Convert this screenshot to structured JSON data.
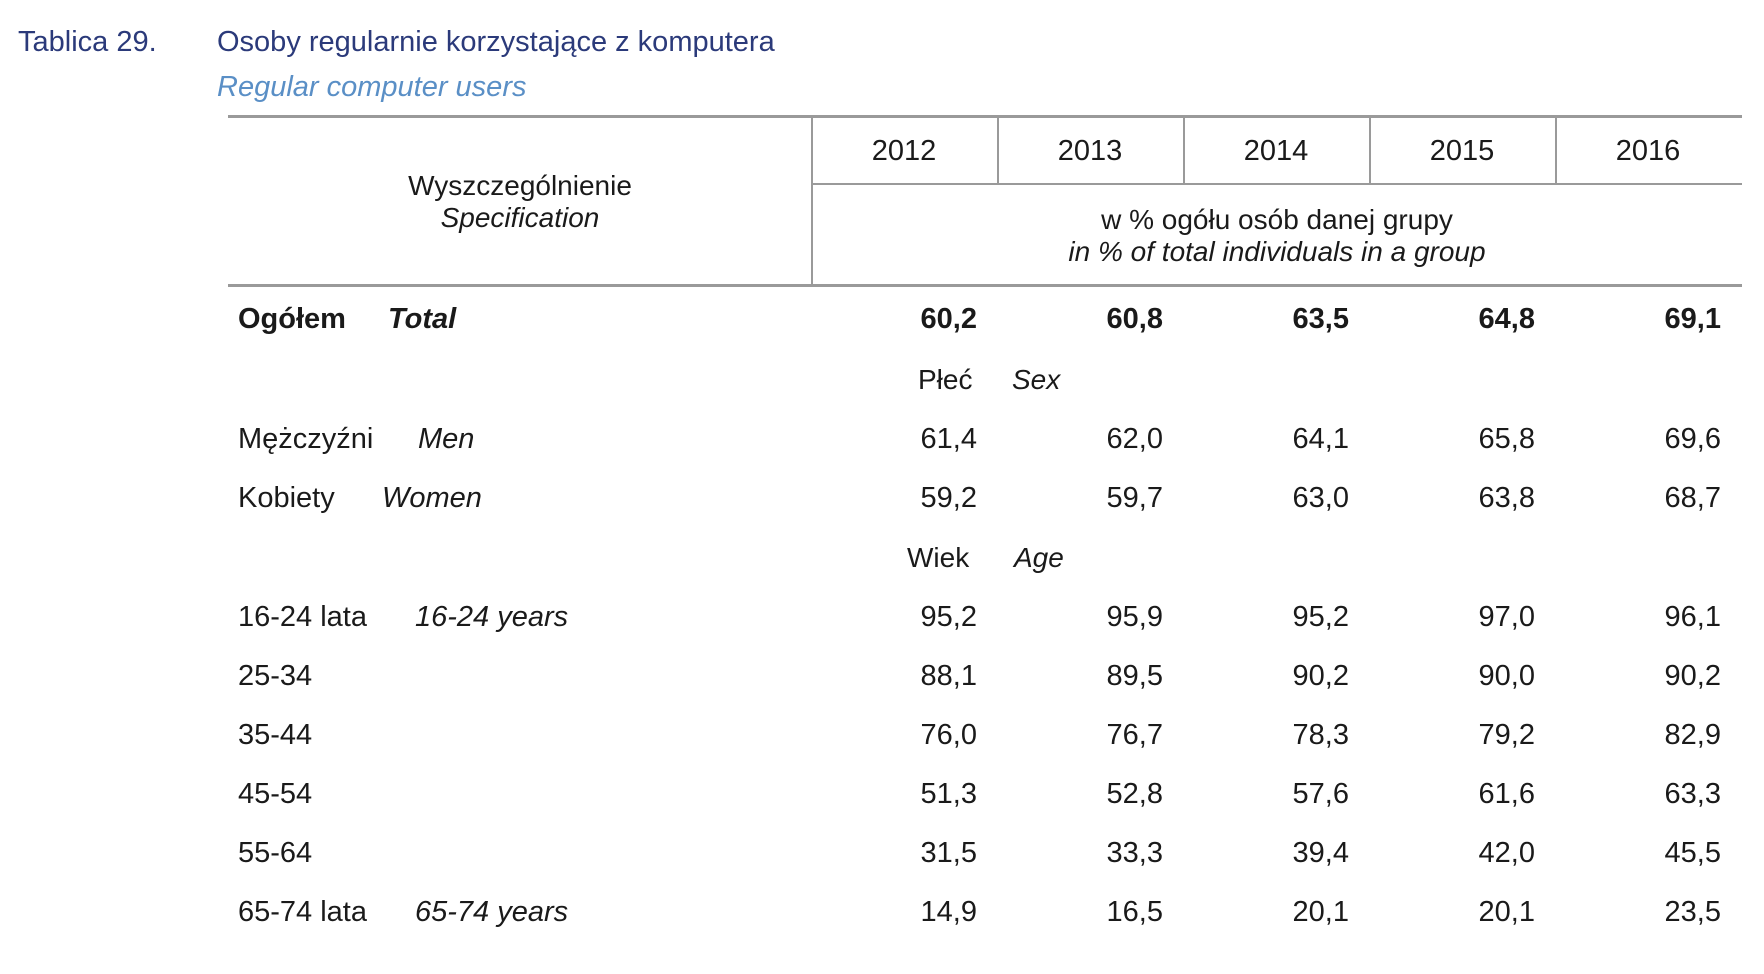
{
  "title": {
    "number": "Tablica 29.",
    "pl": "Osoby regularnie korzystające z komputera",
    "en": "Regular computer users"
  },
  "header": {
    "spec_pl": "Wyszczególnienie",
    "spec_en": "Specification",
    "years": [
      "2012",
      "2013",
      "2014",
      "2015",
      "2016"
    ],
    "unit_pl": "w % ogółu osób danej grupy",
    "unit_en": "in % of total individuals in a group"
  },
  "total": {
    "label_pl": "Ogółem",
    "label_en": "Total",
    "values": [
      "60,2",
      "60,8",
      "63,5",
      "64,8",
      "69,1"
    ]
  },
  "sections": {
    "sex": {
      "pl": "Płeć",
      "en": "Sex"
    },
    "age": {
      "pl": "Wiek",
      "en": "Age"
    }
  },
  "sex_rows": [
    {
      "label_pl": "Mężczyźni",
      "label_en": "Men",
      "values": [
        "61,4",
        "62,0",
        "64,1",
        "65,8",
        "69,6"
      ]
    },
    {
      "label_pl": "Kobiety",
      "label_en": "Women",
      "values": [
        "59,2",
        "59,7",
        "63,0",
        "63,8",
        "68,7"
      ]
    }
  ],
  "age_rows": [
    {
      "label_pl": "16-24 lata",
      "label_en": "16-24 years",
      "values": [
        "95,2",
        "95,9",
        "95,2",
        "97,0",
        "96,1"
      ]
    },
    {
      "label_pl": "25-34",
      "label_en": "",
      "values": [
        "88,1",
        "89,5",
        "90,2",
        "90,0",
        "90,2"
      ]
    },
    {
      "label_pl": "35-44",
      "label_en": "",
      "values": [
        "76,0",
        "76,7",
        "78,3",
        "79,2",
        "82,9"
      ]
    },
    {
      "label_pl": "45-54",
      "label_en": "",
      "values": [
        "51,3",
        "52,8",
        "57,6",
        "61,6",
        "63,3"
      ]
    },
    {
      "label_pl": "55-64",
      "label_en": "",
      "values": [
        "31,5",
        "33,3",
        "39,4",
        "42,0",
        "45,5"
      ]
    },
    {
      "label_pl": "65-74 lata",
      "label_en": "65-74 years",
      "values": [
        "14,9",
        "16,5",
        "20,1",
        "20,1",
        "23,5"
      ]
    }
  ]
}
